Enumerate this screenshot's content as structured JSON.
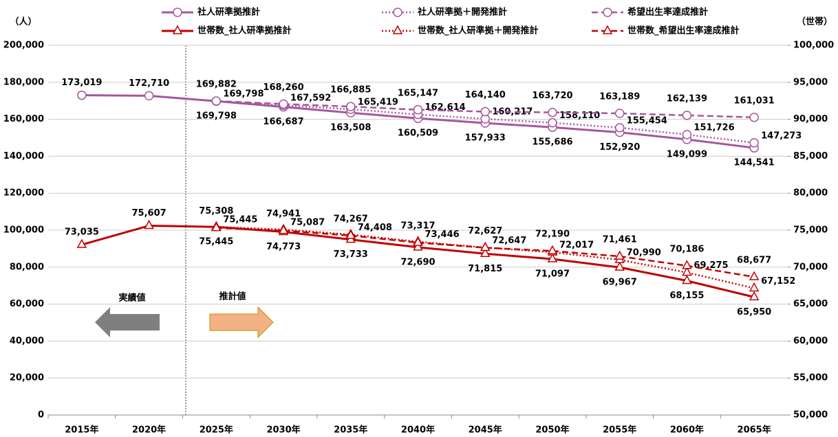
{
  "chart_data": {
    "type": "line",
    "y_label": "（人）",
    "y2_label": "（世帯）",
    "categories": [
      "2015年",
      "2020年",
      "2025年",
      "2030年",
      "2035年",
      "2040年",
      "2045年",
      "2050年",
      "2055年",
      "2060年",
      "2065年"
    ],
    "ylim": [
      0,
      200000
    ],
    "yticks": [
      0,
      {
        "value": 20000,
        "label": "20,000"
      },
      {
        "value": 40000,
        "label": "40,000"
      },
      {
        "value": 60000,
        "label": "60,000"
      },
      {
        "value": 80000,
        "label": "80,000"
      },
      {
        "value": 100000,
        "label": "100,000"
      },
      {
        "value": 120000,
        "label": "120,000"
      },
      {
        "value": 140000,
        "label": "140,000"
      },
      {
        "value": 160000,
        "label": "160,000"
      },
      {
        "value": 180000,
        "label": "180,000"
      },
      {
        "value": 200000,
        "label": "200,000"
      }
    ],
    "y2lim": [
      50000,
      100000
    ],
    "y2ticks": [
      {
        "value": 50000,
        "label": "50,000"
      },
      {
        "value": 55000,
        "label": "55,000"
      },
      {
        "value": 60000,
        "label": "60,000"
      },
      {
        "value": 65000,
        "label": "65,000"
      },
      {
        "value": 70000,
        "label": "70,000"
      },
      {
        "value": 75000,
        "label": "75,000"
      },
      {
        "value": 80000,
        "label": "80,000"
      },
      {
        "value": 85000,
        "label": "85,000"
      },
      {
        "value": 90000,
        "label": "90,000"
      },
      {
        "value": 95000,
        "label": "95,000"
      },
      {
        "value": 100000,
        "label": "100,000"
      }
    ],
    "grid": true,
    "annotations": [
      "実績値",
      "推計値"
    ],
    "series": [
      {
        "name": "社人研準拠推計",
        "color": "#a5569c",
        "style": "solid",
        "marker": "circle",
        "values": [
          173019,
          172710,
          169798,
          166687,
          163508,
          160509,
          157933,
          155686,
          152920,
          149099,
          144541
        ],
        "value_labels": [
          "173,019",
          "172,710",
          "169,798",
          "166,687",
          "163,508",
          "160,509",
          "157,933",
          "155,686",
          "152,920",
          "149,099",
          "144,541"
        ]
      },
      {
        "name": "社人研準拠＋開発推計",
        "color": "#a5569c",
        "style": "dotted",
        "marker": "circle",
        "values": [
          null,
          null,
          169798,
          167592,
          165419,
          162614,
          160217,
          158110,
          155454,
          151726,
          147273
        ],
        "value_labels": [
          null,
          null,
          "169,798",
          "167,592",
          "165,419",
          "162,614",
          "160,217",
          "158,110",
          "155,454",
          "151,726",
          "147,273"
        ]
      },
      {
        "name": "希望出生率達成推計",
        "color": "#a5569c",
        "style": "dashed",
        "marker": "circle",
        "values": [
          null,
          null,
          169882,
          168260,
          166885,
          165147,
          164140,
          163720,
          163189,
          162139,
          161031
        ],
        "value_labels": [
          null,
          null,
          "169,882",
          "168,260",
          "166,885",
          "165,147",
          "164,140",
          "163,720",
          "163,189",
          "162,139",
          "161,031"
        ]
      },
      {
        "name": "世帯数_社人研準拠推計",
        "color": "#c00000",
        "style": "solid",
        "marker": "triangle",
        "axis": "y2",
        "values": [
          73035,
          75607,
          75445,
          74773,
          73733,
          72690,
          71815,
          71097,
          69967,
          68155,
          65950
        ],
        "value_labels": [
          "73,035",
          "75,607",
          "75,445",
          "74,773",
          "73,733",
          "72,690",
          "71,815",
          "71,097",
          "69,967",
          "68,155",
          "65,950"
        ]
      },
      {
        "name": "世帯数_社人研準拠＋開発推計",
        "color": "#c00000",
        "style": "dotted",
        "marker": "triangle",
        "axis": "y2",
        "values": [
          null,
          null,
          75445,
          75087,
          74408,
          73446,
          72647,
          72017,
          70990,
          69275,
          67152
        ],
        "value_labels": [
          null,
          null,
          "75,445",
          "75,087",
          "74,408",
          "73,446",
          "72,647",
          "72,017",
          "70,990",
          "69,275",
          "67,152"
        ]
      },
      {
        "name": "世帯数_希望出生率達成推計",
        "color": "#c00000",
        "style": "dashed",
        "marker": "triangle",
        "axis": "y2",
        "values": [
          null,
          null,
          75308,
          74941,
          74267,
          73317,
          72627,
          72190,
          71461,
          70186,
          68677
        ],
        "value_labels": [
          null,
          null,
          "75,308",
          "74,941",
          "74,267",
          "73,317",
          "72,627",
          "72,190",
          "71,461",
          "70,186",
          "68,677"
        ]
      }
    ]
  }
}
